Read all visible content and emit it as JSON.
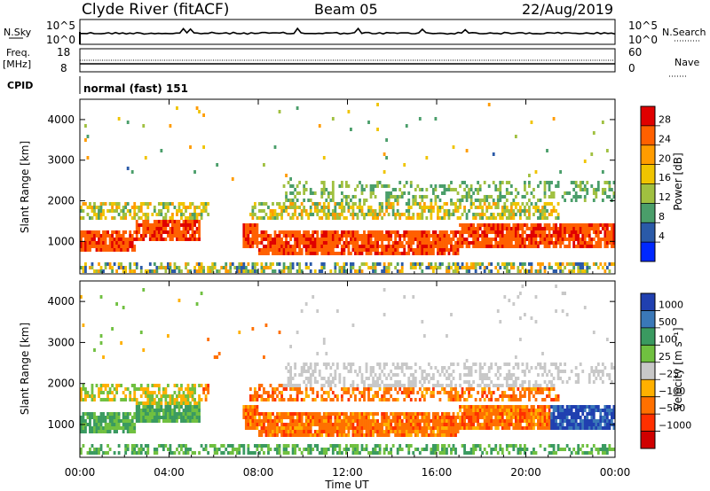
{
  "header": {
    "station": "Clyde River (fitACF)",
    "beam": "Beam 05",
    "date": "22/Aug/2019"
  },
  "top_panels": {
    "nsky_label": "N.Sky",
    "nsky_ticks": [
      "10^5",
      "10^0"
    ],
    "nsearch_label": "N.Search",
    "nsearch_ticks": [
      "10^5",
      "10^0"
    ],
    "freq_label_1": "Freq.",
    "freq_label_2": "[MHz]",
    "freq_ticks": [
      "18",
      "8"
    ],
    "nave_label": "Nave",
    "nave_ticks": [
      "60",
      "0"
    ],
    "cpid_label": "CPID",
    "cpid_value": "normal (fast) 151"
  },
  "chart_data": [
    {
      "type": "heatmap",
      "name": "power-panel",
      "ylabel": "Slant Range [km]",
      "yticks": [
        "1000",
        "2000",
        "3000",
        "4000"
      ],
      "ylim": [
        200,
        4500
      ],
      "xlim": [
        0,
        24
      ],
      "colorbar_label": "Power [dB]",
      "colorbar_ticks": [
        "28",
        "24",
        "20",
        "16",
        "12",
        "8",
        "4"
      ],
      "colorbar_colors": [
        "#e00000",
        "#ff6000",
        "#ff9c00",
        "#f0c400",
        "#a0c040",
        "#4a9e6a",
        "#2a5aa8",
        "#0028ff"
      ]
    },
    {
      "type": "heatmap",
      "name": "velocity-panel",
      "ylabel": "Slant Range [km]",
      "yticks": [
        "1000",
        "2000",
        "3000",
        "4000"
      ],
      "ylim": [
        200,
        4500
      ],
      "xlim": [
        0,
        24
      ],
      "colorbar_label": "Velocity [m s⁻¹]",
      "colorbar_ticks": [
        "1000",
        "500",
        "100",
        "25",
        "−25",
        "−100",
        "−500",
        "−1000"
      ],
      "colorbar_colors": [
        "#2040b0",
        "#3a78b8",
        "#3a9a60",
        "#70c040",
        "#c8c8c8",
        "#ffb000",
        "#ff7000",
        "#ff3000",
        "#d00000"
      ]
    }
  ],
  "x_axis": {
    "ticks": [
      "00:00",
      "04:00",
      "08:00",
      "12:00",
      "16:00",
      "20:00",
      "00:00"
    ],
    "label": "Time UT"
  }
}
